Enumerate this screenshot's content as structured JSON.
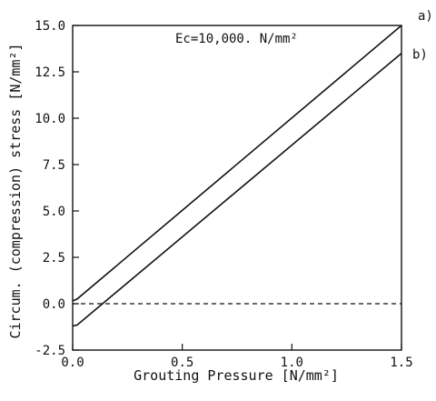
{
  "chart_data": {
    "type": "line",
    "xlabel": "Grouting Pressure [N/mm²]",
    "ylabel": "Circum. (compression) stress [N/mm²]",
    "xlim": [
      0.0,
      1.5
    ],
    "ylim": [
      -2.5,
      15.0
    ],
    "xticks": [
      "0.0",
      "0.5",
      "1.0",
      "1.5"
    ],
    "yticks": [
      "-2.5",
      "0.0",
      "2.5",
      "5.0",
      "7.5",
      "10.0",
      "12.5",
      "15.0"
    ],
    "annotation": "Ec=10,000. N/mm²",
    "grid": false,
    "series": [
      {
        "name": "a)",
        "x": [
          0.0,
          0.02,
          1.5
        ],
        "y": [
          0.15,
          0.25,
          15.0
        ]
      },
      {
        "name": "b)",
        "x": [
          0.0,
          0.02,
          1.5
        ],
        "y": [
          -1.2,
          -1.15,
          13.5
        ]
      }
    ],
    "reference_line": {
      "y": 0.0,
      "style": "dashed"
    }
  }
}
